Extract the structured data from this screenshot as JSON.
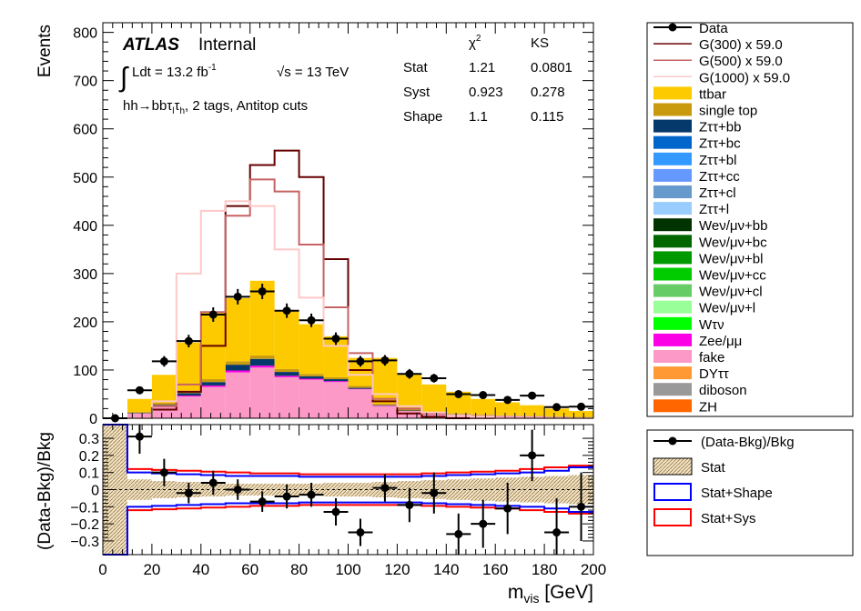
{
  "chart_data": [
    {
      "type": "bar",
      "panel": "main",
      "ylabel": "Events",
      "ylim": [
        0,
        820
      ],
      "yticks": [
        0,
        100,
        200,
        300,
        400,
        500,
        600,
        700,
        800
      ],
      "xlim": [
        0,
        200
      ],
      "xticks": [
        0,
        20,
        40,
        60,
        80,
        100,
        120,
        140,
        160,
        180,
        200
      ],
      "bin_edges": [
        0,
        10,
        20,
        30,
        40,
        50,
        60,
        70,
        80,
        90,
        100,
        110,
        120,
        130,
        140,
        150,
        160,
        170,
        180,
        190,
        200
      ],
      "texts": {
        "atlas": "ATLAS",
        "internal": "Internal",
        "lumi_pre": "Ldt = 13.2 fb",
        "lumi_sup": "-1",
        "energy": "√s = 13 TeV",
        "region": "hh→bbτ",
        "region_l": "l",
        "region_tau": "τ",
        "region_h": "h",
        "region_post": ", 2 tags, Antitop cuts",
        "integral": "∫"
      },
      "stat_table": {
        "col_headers": [
          "χ",
          "KS"
        ],
        "chi_sup": "2",
        "rows": [
          {
            "name": "Stat",
            "chi2": "1.21",
            "ks": "0.0801"
          },
          {
            "name": "Syst",
            "chi2": "0.923",
            "ks": "0.278"
          },
          {
            "name": "Shape",
            "chi2": "1.1",
            "ks": "0.115"
          }
        ]
      },
      "stack": [
        {
          "name": "fake",
          "color": "#fc99c6",
          "values": [
            0,
            10,
            25,
            45,
            65,
            95,
            105,
            85,
            80,
            75,
            60,
            25,
            15,
            10,
            8,
            6,
            5,
            4,
            3,
            2
          ]
        },
        {
          "name": "Zee/μμ",
          "color": "#fc00e5",
          "values": [
            0,
            0,
            0,
            2,
            3,
            4,
            4,
            3,
            2,
            2,
            1,
            1,
            0,
            0,
            0,
            0,
            0,
            0,
            0,
            0
          ]
        },
        {
          "name": "Zττ+bb",
          "color": "#05386b",
          "values": [
            0,
            1,
            3,
            5,
            7,
            12,
            14,
            8,
            5,
            4,
            2,
            1,
            1,
            0,
            0,
            0,
            0,
            0,
            0,
            0
          ]
        },
        {
          "name": "single top",
          "color": "#c99a0e",
          "values": [
            0,
            2,
            4,
            5,
            6,
            7,
            7,
            6,
            5,
            4,
            4,
            3,
            3,
            2,
            2,
            2,
            1,
            1,
            1,
            1
          ]
        },
        {
          "name": "ttbar",
          "color": "#fdca00",
          "values": [
            0,
            27,
            58,
            100,
            139,
            131,
            155,
            121,
            103,
            85,
            58,
            95,
            71,
            58,
            45,
            32,
            27,
            22,
            16,
            12
          ]
        }
      ],
      "total_bkg": [
        0,
        40,
        90,
        157,
        220,
        249,
        285,
        223,
        195,
        170,
        125,
        125,
        90,
        70,
        55,
        40,
        33,
        27,
        20,
        15
      ],
      "data": {
        "name": "Data",
        "values": [
          0,
          58,
          118,
          160,
          215,
          252,
          263,
          223,
          203,
          165,
          118,
          120,
          92,
          83,
          50,
          48,
          38,
          47,
          23,
          24
        ],
        "errors": [
          0,
          8,
          11,
          13,
          15,
          16,
          16,
          15,
          14,
          13,
          11,
          11,
          10,
          9,
          7,
          7,
          6,
          7,
          5,
          5
        ]
      },
      "signals": [
        {
          "name": "G(300) x 59.0",
          "color": "#660000",
          "values": [
            0,
            0,
            18,
            55,
            150,
            440,
            525,
            555,
            500,
            330,
            100,
            35,
            10,
            3,
            0,
            0,
            0,
            0,
            0,
            0
          ]
        },
        {
          "name": "G(500) x 59.0",
          "color": "#c76363",
          "values": [
            0,
            0,
            25,
            70,
            220,
            420,
            495,
            470,
            360,
            230,
            135,
            40,
            20,
            10,
            5,
            0,
            0,
            0,
            0,
            0
          ]
        },
        {
          "name": "G(1000) x 59.0",
          "color": "#ffc8c8",
          "values": [
            0,
            0,
            35,
            300,
            430,
            450,
            440,
            350,
            250,
            150,
            90,
            50,
            25,
            12,
            5,
            3,
            0,
            0,
            0,
            0
          ]
        }
      ],
      "legend": {
        "placement": "right",
        "entries": [
          {
            "name": "Data",
            "style": "marker",
            "color": "#000000"
          },
          {
            "name": "G(300) x 59.0",
            "style": "line",
            "color": "#660000"
          },
          {
            "name": "G(500) x 59.0",
            "style": "line",
            "color": "#c76363"
          },
          {
            "name": "G(1000) x 59.0",
            "style": "line",
            "color": "#ffc8c8"
          },
          {
            "name": "ttbar",
            "style": "fill",
            "color": "#fdca00"
          },
          {
            "name": "single top",
            "style": "fill",
            "color": "#c99a0e"
          },
          {
            "name": "Zττ+bb",
            "style": "fill",
            "color": "#05386b"
          },
          {
            "name": "Zττ+bc",
            "style": "fill",
            "color": "#0066cc"
          },
          {
            "name": "Zττ+bl",
            "style": "fill",
            "color": "#3399ff"
          },
          {
            "name": "Zττ+cc",
            "style": "fill",
            "color": "#6699ff"
          },
          {
            "name": "Zττ+cl",
            "style": "fill",
            "color": "#6699cc"
          },
          {
            "name": "Zττ+l",
            "style": "fill",
            "color": "#99ccff"
          },
          {
            "name": "Weν/μν+bb",
            "style": "fill",
            "color": "#003300"
          },
          {
            "name": "Weν/μν+bc",
            "style": "fill",
            "color": "#006600"
          },
          {
            "name": "Weν/μν+bl",
            "style": "fill",
            "color": "#009900"
          },
          {
            "name": "Weν/μν+cc",
            "style": "fill",
            "color": "#00cc00"
          },
          {
            "name": "Weν/μν+cl",
            "style": "fill",
            "color": "#66cc66"
          },
          {
            "name": "Weν/μν+l",
            "style": "fill",
            "color": "#99ff99"
          },
          {
            "name": "Wτν",
            "style": "fill",
            "color": "#00ff00"
          },
          {
            "name": "Zee/μμ",
            "style": "fill",
            "color": "#fc00e5"
          },
          {
            "name": "fake",
            "style": "fill",
            "color": "#fc99c6"
          },
          {
            "name": "DYττ",
            "style": "fill",
            "color": "#ff9933"
          },
          {
            "name": "diboson",
            "style": "fill",
            "color": "#999999"
          },
          {
            "name": "ZH",
            "style": "fill",
            "color": "#ff6600"
          }
        ]
      }
    },
    {
      "type": "scatter",
      "panel": "ratio",
      "ylabel": "(Data-Bkg)/Bkg",
      "xlabel": "m",
      "xlabel_sub": "vis",
      "xlabel_unit": " [GeV]",
      "ylim": [
        -0.38,
        0.38
      ],
      "yticks": [
        -0.3,
        -0.2,
        -0.1,
        0,
        0.1,
        0.2,
        0.3
      ],
      "ytick_labels": [
        "−0.3",
        "−0.2",
        "−0.1",
        "0",
        "0.1",
        "0.2",
        "0.3"
      ],
      "xlim": [
        0,
        200
      ],
      "xticks": [
        0,
        20,
        40,
        60,
        80,
        100,
        120,
        140,
        160,
        180,
        200
      ],
      "points": {
        "x": [
          15,
          25,
          35,
          45,
          55,
          65,
          75,
          85,
          95,
          105,
          115,
          125,
          135,
          145,
          155,
          165,
          175,
          185,
          195
        ],
        "y": [
          0.31,
          0.1,
          -0.02,
          0.04,
          0.0,
          -0.07,
          -0.04,
          -0.03,
          -0.13,
          -0.25,
          0.01,
          -0.09,
          -0.02,
          -0.26,
          -0.2,
          -0.11,
          0.2,
          -0.25,
          -0.1
        ],
        "yerr": [
          0.1,
          0.08,
          0.06,
          0.07,
          0.06,
          0.06,
          0.07,
          0.07,
          0.08,
          0.08,
          0.08,
          0.1,
          0.12,
          0.12,
          0.14,
          0.15,
          0.15,
          0.2,
          0.2
        ]
      },
      "stat_band": [
        0.9,
        0.06,
        0.05,
        0.045,
        0.04,
        0.035,
        0.035,
        0.035,
        0.035,
        0.04,
        0.04,
        0.045,
        0.05,
        0.055,
        0.06,
        0.065,
        0.07,
        0.075,
        0.08,
        0.085
      ],
      "stat_shape_band": [
        0.9,
        0.1,
        0.095,
        0.09,
        0.085,
        0.08,
        0.08,
        0.08,
        0.075,
        0.075,
        0.075,
        0.075,
        0.075,
        0.08,
        0.085,
        0.09,
        0.095,
        0.1,
        0.11,
        0.13
      ],
      "stat_sys_band": [
        0.9,
        0.12,
        0.115,
        0.11,
        0.105,
        0.1,
        0.095,
        0.095,
        0.09,
        0.09,
        0.09,
        0.09,
        0.09,
        0.095,
        0.1,
        0.105,
        0.11,
        0.12,
        0.13,
        0.14
      ],
      "legend": {
        "placement": "right",
        "entries": [
          {
            "name": "(Data-Bkg)/Bkg",
            "style": "marker",
            "color": "#000000"
          },
          {
            "name": "Stat",
            "style": "hatch",
            "color": "#c8a26b"
          },
          {
            "name": "Stat+Shape",
            "style": "box",
            "color": "#0000ff"
          },
          {
            "name": "Stat+Sys",
            "style": "box",
            "color": "#ff0000"
          }
        ]
      }
    }
  ]
}
